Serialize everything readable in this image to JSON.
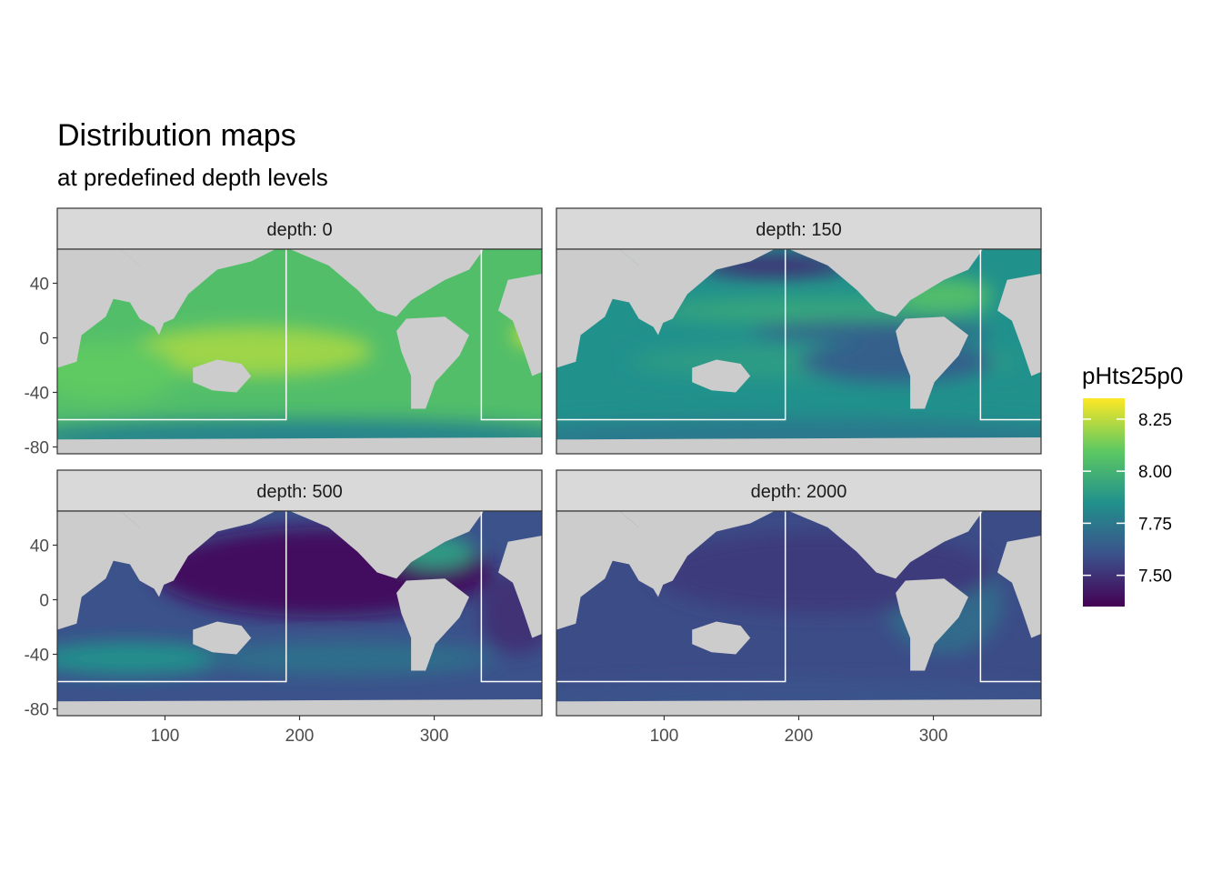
{
  "title": "Distribution maps",
  "subtitle": "at predefined depth levels",
  "chart_data": {
    "type": "heatmap",
    "variable": "pHts25p0",
    "x_ticks": [
      100,
      200,
      300
    ],
    "y_ticks": [
      40,
      0,
      -40,
      -80
    ],
    "xlim": [
      20,
      380
    ],
    "ylim": [
      -85,
      65
    ],
    "fill_scale": {
      "name": "pHts25p0",
      "palette": "viridis",
      "breaks": [
        8.25,
        8.0,
        7.75,
        7.5
      ],
      "limits": [
        7.35,
        8.35
      ]
    },
    "panels": [
      {
        "label": "depth: 0",
        "depth": 0,
        "typical_value": 8.05
      },
      {
        "label": "depth: 150",
        "depth": 150,
        "typical_value": 7.85
      },
      {
        "label": "depth: 500",
        "depth": 500,
        "typical_value": 7.6
      },
      {
        "label": "depth: 2000",
        "depth": 2000,
        "typical_value": 7.58
      }
    ]
  },
  "colors": {
    "land": "#cccccc",
    "strip_bg": "#d9d9d9",
    "panel_border": "#333333",
    "box_lines": "#ffffff"
  }
}
